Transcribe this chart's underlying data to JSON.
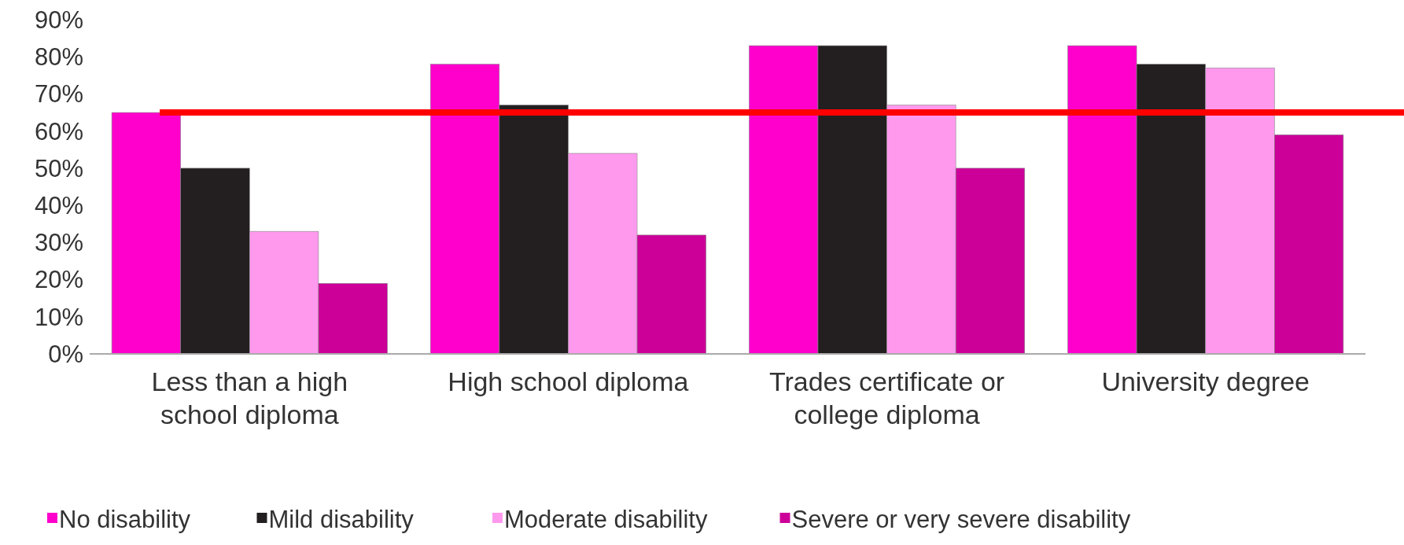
{
  "chart_data": {
    "type": "bar",
    "categories": [
      "Less than a high school diploma",
      "High school diploma",
      "Trades certificate or college diploma",
      "University degree"
    ],
    "series": [
      {
        "name": "No disability",
        "color": "#ff00cc",
        "values": [
          65,
          78,
          83,
          83
        ]
      },
      {
        "name": "Mild disability",
        "color": "#231f20",
        "values": [
          50,
          67,
          83,
          78
        ]
      },
      {
        "name": "Moderate disability",
        "color": "#ff99ee",
        "values": [
          33,
          54,
          67,
          77
        ]
      },
      {
        "name": "Severe or very severe disability",
        "color": "#cc0099",
        "values": [
          19,
          32,
          50,
          59
        ]
      }
    ],
    "ylim": [
      0,
      90
    ],
    "yticks": [
      {
        "value": 0,
        "label": "0%"
      },
      {
        "value": 10,
        "label": "10%"
      },
      {
        "value": 20,
        "label": "20%"
      },
      {
        "value": 30,
        "label": "30%"
      },
      {
        "value": 40,
        "label": "40%"
      },
      {
        "value": 50,
        "label": "50%"
      },
      {
        "value": 60,
        "label": "60%"
      },
      {
        "value": 70,
        "label": "70%"
      },
      {
        "value": 80,
        "label": "80%"
      },
      {
        "value": 90,
        "label": "90%"
      }
    ],
    "ref_lines": [
      {
        "axis": "y",
        "value": 65,
        "color": "#ff0000"
      }
    ],
    "legend": "bottom",
    "grid": false
  }
}
